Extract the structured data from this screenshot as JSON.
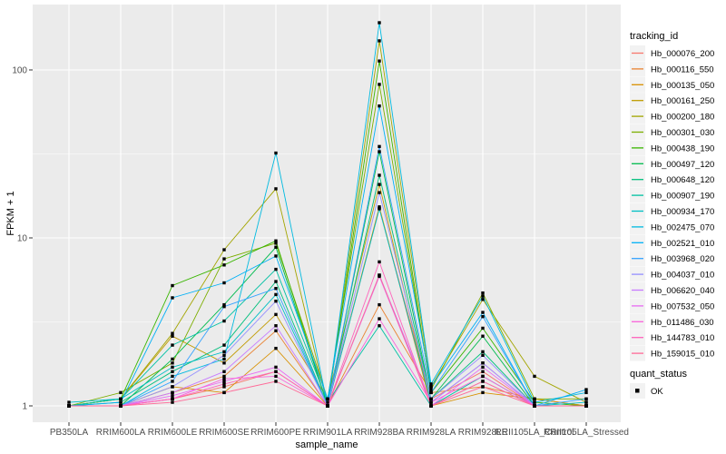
{
  "chart_data": {
    "type": "line",
    "title": "",
    "xlabel": "sample_name",
    "ylabel": "FPKM + 1",
    "y_scale": "log10",
    "ylim": [
      0.8,
      260
    ],
    "y_ticks": [
      {
        "label": "1",
        "value": 1
      },
      {
        "label": "10",
        "value": 10
      },
      {
        "label": "100",
        "value": 100
      }
    ],
    "grid": "on",
    "legend_position": "right",
    "categories": [
      "PB350LA",
      "RRIM600LA",
      "RRIM600LE",
      "RRIM600SE",
      "RRIM600PE",
      "RRIM901LA",
      "RRIM928BA",
      "RRIM928LA",
      "RRIM928LE",
      "RRII105LA_Control",
      "RRII105LA_Stressed"
    ],
    "series": [
      {
        "name": "Hb_000076_200",
        "color": "#F8766D",
        "values": [
          1.0,
          1.0,
          1.1,
          1.3,
          1.6,
          1.0,
          15.0,
          1.1,
          1.6,
          1.0,
          1.0
        ]
      },
      {
        "name": "Hb_000116_550",
        "color": "#EA8331",
        "values": [
          1.0,
          1.0,
          1.2,
          1.5,
          2.8,
          1.0,
          4.0,
          1.2,
          1.3,
          1.1,
          1.0
        ]
      },
      {
        "name": "Hb_000135_050",
        "color": "#D89000",
        "values": [
          1.0,
          1.0,
          1.3,
          1.2,
          2.2,
          1.0,
          15.3,
          1.0,
          1.2,
          1.1,
          1.0
        ]
      },
      {
        "name": "Hb_000161_250",
        "color": "#C09B00",
        "values": [
          1.0,
          1.1,
          2.6,
          1.8,
          3.5,
          1.1,
          20.8,
          1.0,
          1.4,
          1.0,
          1.0
        ]
      },
      {
        "name": "Hb_000200_180",
        "color": "#A3A500",
        "values": [
          1.0,
          1.1,
          2.7,
          8.5,
          19.6,
          1.0,
          149.0,
          1.3,
          4.3,
          1.5,
          1.05
        ]
      },
      {
        "name": "Hb_000301_030",
        "color": "#7CAE00",
        "values": [
          1.0,
          1.2,
          1.8,
          7.5,
          9.3,
          1.1,
          82.0,
          1.25,
          4.7,
          1.1,
          1.1
        ]
      },
      {
        "name": "Hb_000438_190",
        "color": "#39B600",
        "values": [
          1.0,
          1.1,
          5.2,
          6.9,
          9.6,
          1.0,
          113.0,
          1.2,
          2.9,
          1.05,
          1.0
        ]
      },
      {
        "name": "Hb_000497_120",
        "color": "#00BB4E",
        "values": [
          1.0,
          1.0,
          1.9,
          4.0,
          8.8,
          1.0,
          32.6,
          1.1,
          2.6,
          1.0,
          1.0
        ]
      },
      {
        "name": "Hb_000648_120",
        "color": "#00BF7D",
        "values": [
          1.0,
          1.05,
          1.6,
          2.3,
          5.5,
          1.0,
          23.6,
          1.1,
          2.1,
          1.0,
          1.0
        ]
      },
      {
        "name": "Hb_000907_190",
        "color": "#00C1A3",
        "values": [
          1.0,
          1.1,
          2.3,
          3.2,
          6.5,
          1.05,
          3.0,
          1.0,
          1.5,
          1.0,
          1.0
        ]
      },
      {
        "name": "Hb_000934_170",
        "color": "#00BFC4",
        "values": [
          1.05,
          1.1,
          1.7,
          2.1,
          4.6,
          1.0,
          14.9,
          1.05,
          1.8,
          1.0,
          1.05
        ]
      },
      {
        "name": "Hb_002475_070",
        "color": "#00BAE0",
        "values": [
          1.0,
          1.0,
          1.5,
          1.9,
          32.0,
          1.0,
          191.0,
          1.35,
          4.5,
          1.05,
          1.2
        ]
      },
      {
        "name": "Hb_002521_010",
        "color": "#00B0F6",
        "values": [
          1.0,
          1.05,
          4.4,
          5.4,
          7.8,
          1.1,
          61.0,
          1.3,
          3.6,
          1.0,
          1.25
        ]
      },
      {
        "name": "Hb_003968_020",
        "color": "#35A2FF",
        "values": [
          1.0,
          1.0,
          1.4,
          3.9,
          5.0,
          1.0,
          35.0,
          1.2,
          3.4,
          1.0,
          1.1
        ]
      },
      {
        "name": "Hb_004037_010",
        "color": "#9590FF",
        "values": [
          1.0,
          1.0,
          1.3,
          2.0,
          4.2,
          1.0,
          18.6,
          1.1,
          2.0,
          1.0,
          1.0
        ]
      },
      {
        "name": "Hb_006620_040",
        "color": "#C77CFF",
        "values": [
          1.0,
          1.0,
          1.2,
          1.6,
          3.0,
          1.0,
          6.0,
          1.05,
          1.8,
          1.0,
          1.0
        ]
      },
      {
        "name": "Hb_007532_050",
        "color": "#E76BF3",
        "values": [
          1.0,
          1.0,
          1.15,
          1.4,
          1.7,
          1.0,
          5.9,
          1.0,
          1.7,
          1.0,
          1.0
        ]
      },
      {
        "name": "Hb_011486_030",
        "color": "#FA62DB",
        "values": [
          1.0,
          1.0,
          1.1,
          1.45,
          1.5,
          1.0,
          3.3,
          1.05,
          1.5,
          1.0,
          1.0
        ]
      },
      {
        "name": "Hb_144783_010",
        "color": "#FF62BC",
        "values": [
          1.0,
          1.0,
          1.1,
          1.35,
          1.6,
          1.0,
          7.2,
          1.0,
          1.4,
          1.0,
          1.0
        ]
      },
      {
        "name": "Hb_159015_010",
        "color": "#FF6A98",
        "values": [
          1.0,
          1.0,
          1.05,
          1.2,
          1.4,
          1.0,
          6.0,
          1.0,
          1.3,
          1.0,
          1.0
        ]
      }
    ],
    "point_marker": {
      "shape": "square-dot",
      "color": "#000000"
    }
  },
  "legend": {
    "tracking_title": "tracking_id",
    "quant_title": "quant_status",
    "quant_items": [
      {
        "label": "OK"
      }
    ]
  },
  "colors": {
    "panel_background": "#EBEBEB",
    "grid_major": "#FFFFFF",
    "grid_minor": "#FFFFFF",
    "legend_key_background": "#F2F2F2",
    "tick_mark": "#333333",
    "axis_text": "#4d4d4d",
    "point": "#000000"
  }
}
